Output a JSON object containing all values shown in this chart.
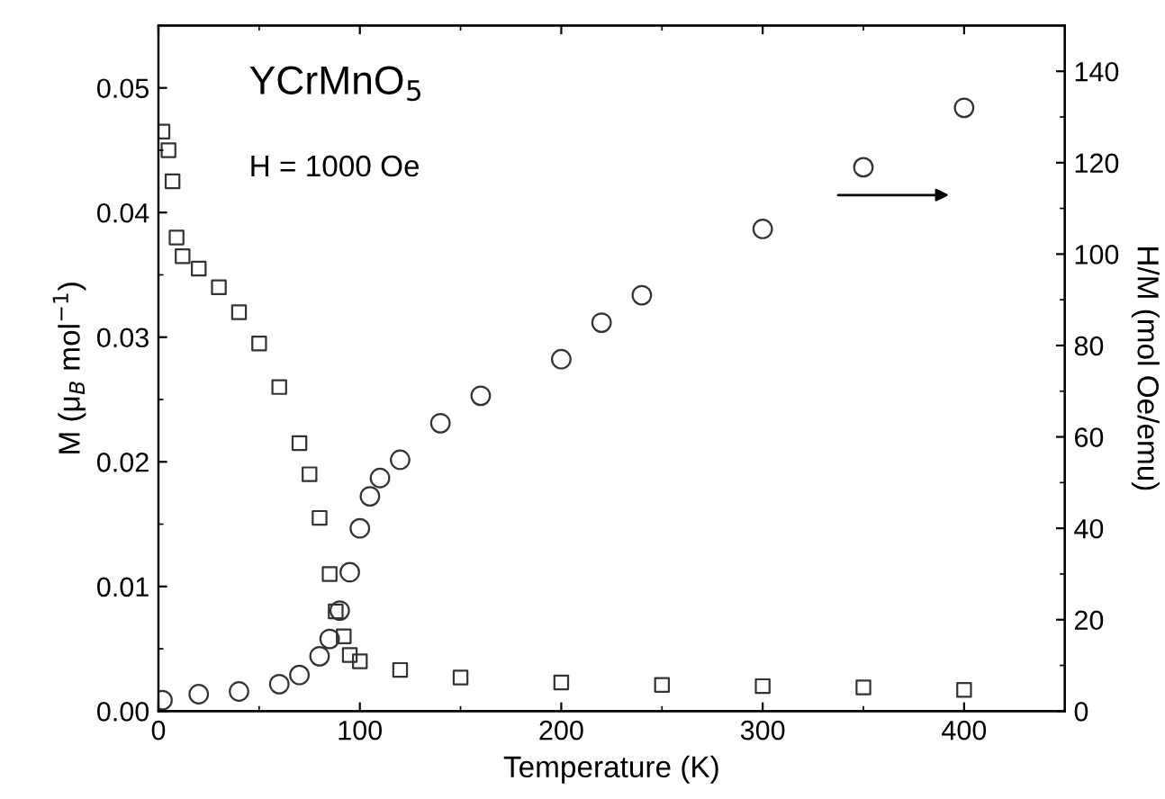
{
  "chart_data": {
    "type": "scatter",
    "xlabel": "Temperature (K)",
    "ylabel": "M (μ$_{B}$ mol$^{−1}$)",
    "y2label": "H/M (mol Oe/emu)",
    "annotations": [
      "YCrMnO$_{5}$",
      "H = 1000 Oe"
    ],
    "xlim": [
      0,
      450
    ],
    "xticks": [
      0,
      100,
      200,
      300,
      400
    ],
    "ylim": [
      0,
      0.055
    ],
    "yticks": [
      {
        "value": 0,
        "label": "0.00"
      },
      {
        "value": 0.01,
        "label": "0.01"
      },
      {
        "value": 0.02,
        "label": "0.02"
      },
      {
        "value": 0.03,
        "label": "0.03"
      },
      {
        "value": 0.04,
        "label": "0.04"
      },
      {
        "value": 0.05,
        "label": "0.05"
      }
    ],
    "y2lim": [
      0,
      150
    ],
    "y2ticks": [
      0,
      20,
      40,
      60,
      80,
      100,
      120,
      140
    ],
    "grid": false,
    "legend": false,
    "series": [
      {
        "marker": "square",
        "color": "#333333",
        "x": [
          2,
          5,
          7,
          9,
          12,
          20,
          30,
          40,
          50,
          60,
          70,
          75,
          80,
          85,
          88,
          92,
          95,
          100,
          120,
          150,
          200,
          250,
          300,
          350,
          400
        ],
        "values": [
          0.0465,
          0.045,
          0.0425,
          0.038,
          0.0365,
          0.0355,
          0.034,
          0.032,
          0.0295,
          0.026,
          0.0215,
          0.019,
          0.0155,
          0.011,
          0.008,
          0.006,
          0.0045,
          0.004,
          0.0033,
          0.0027,
          0.0023,
          0.0021,
          0.002,
          0.0019,
          0.0017
        ]
      },
      {
        "marker": "circle",
        "color": "#333333",
        "axis": "y2",
        "x": [
          2,
          20,
          40,
          60,
          70,
          80,
          85,
          90,
          95,
          100,
          105,
          110,
          120,
          140,
          160,
          200,
          220,
          240,
          300,
          350,
          400
        ],
        "values": [
          2.4,
          3.7,
          4.3,
          5.9,
          7.9,
          12,
          15.8,
          22,
          30.4,
          40,
          47,
          51,
          55,
          63,
          69,
          77,
          85,
          91,
          105.5,
          119,
          132
        ]
      }
    ]
  }
}
